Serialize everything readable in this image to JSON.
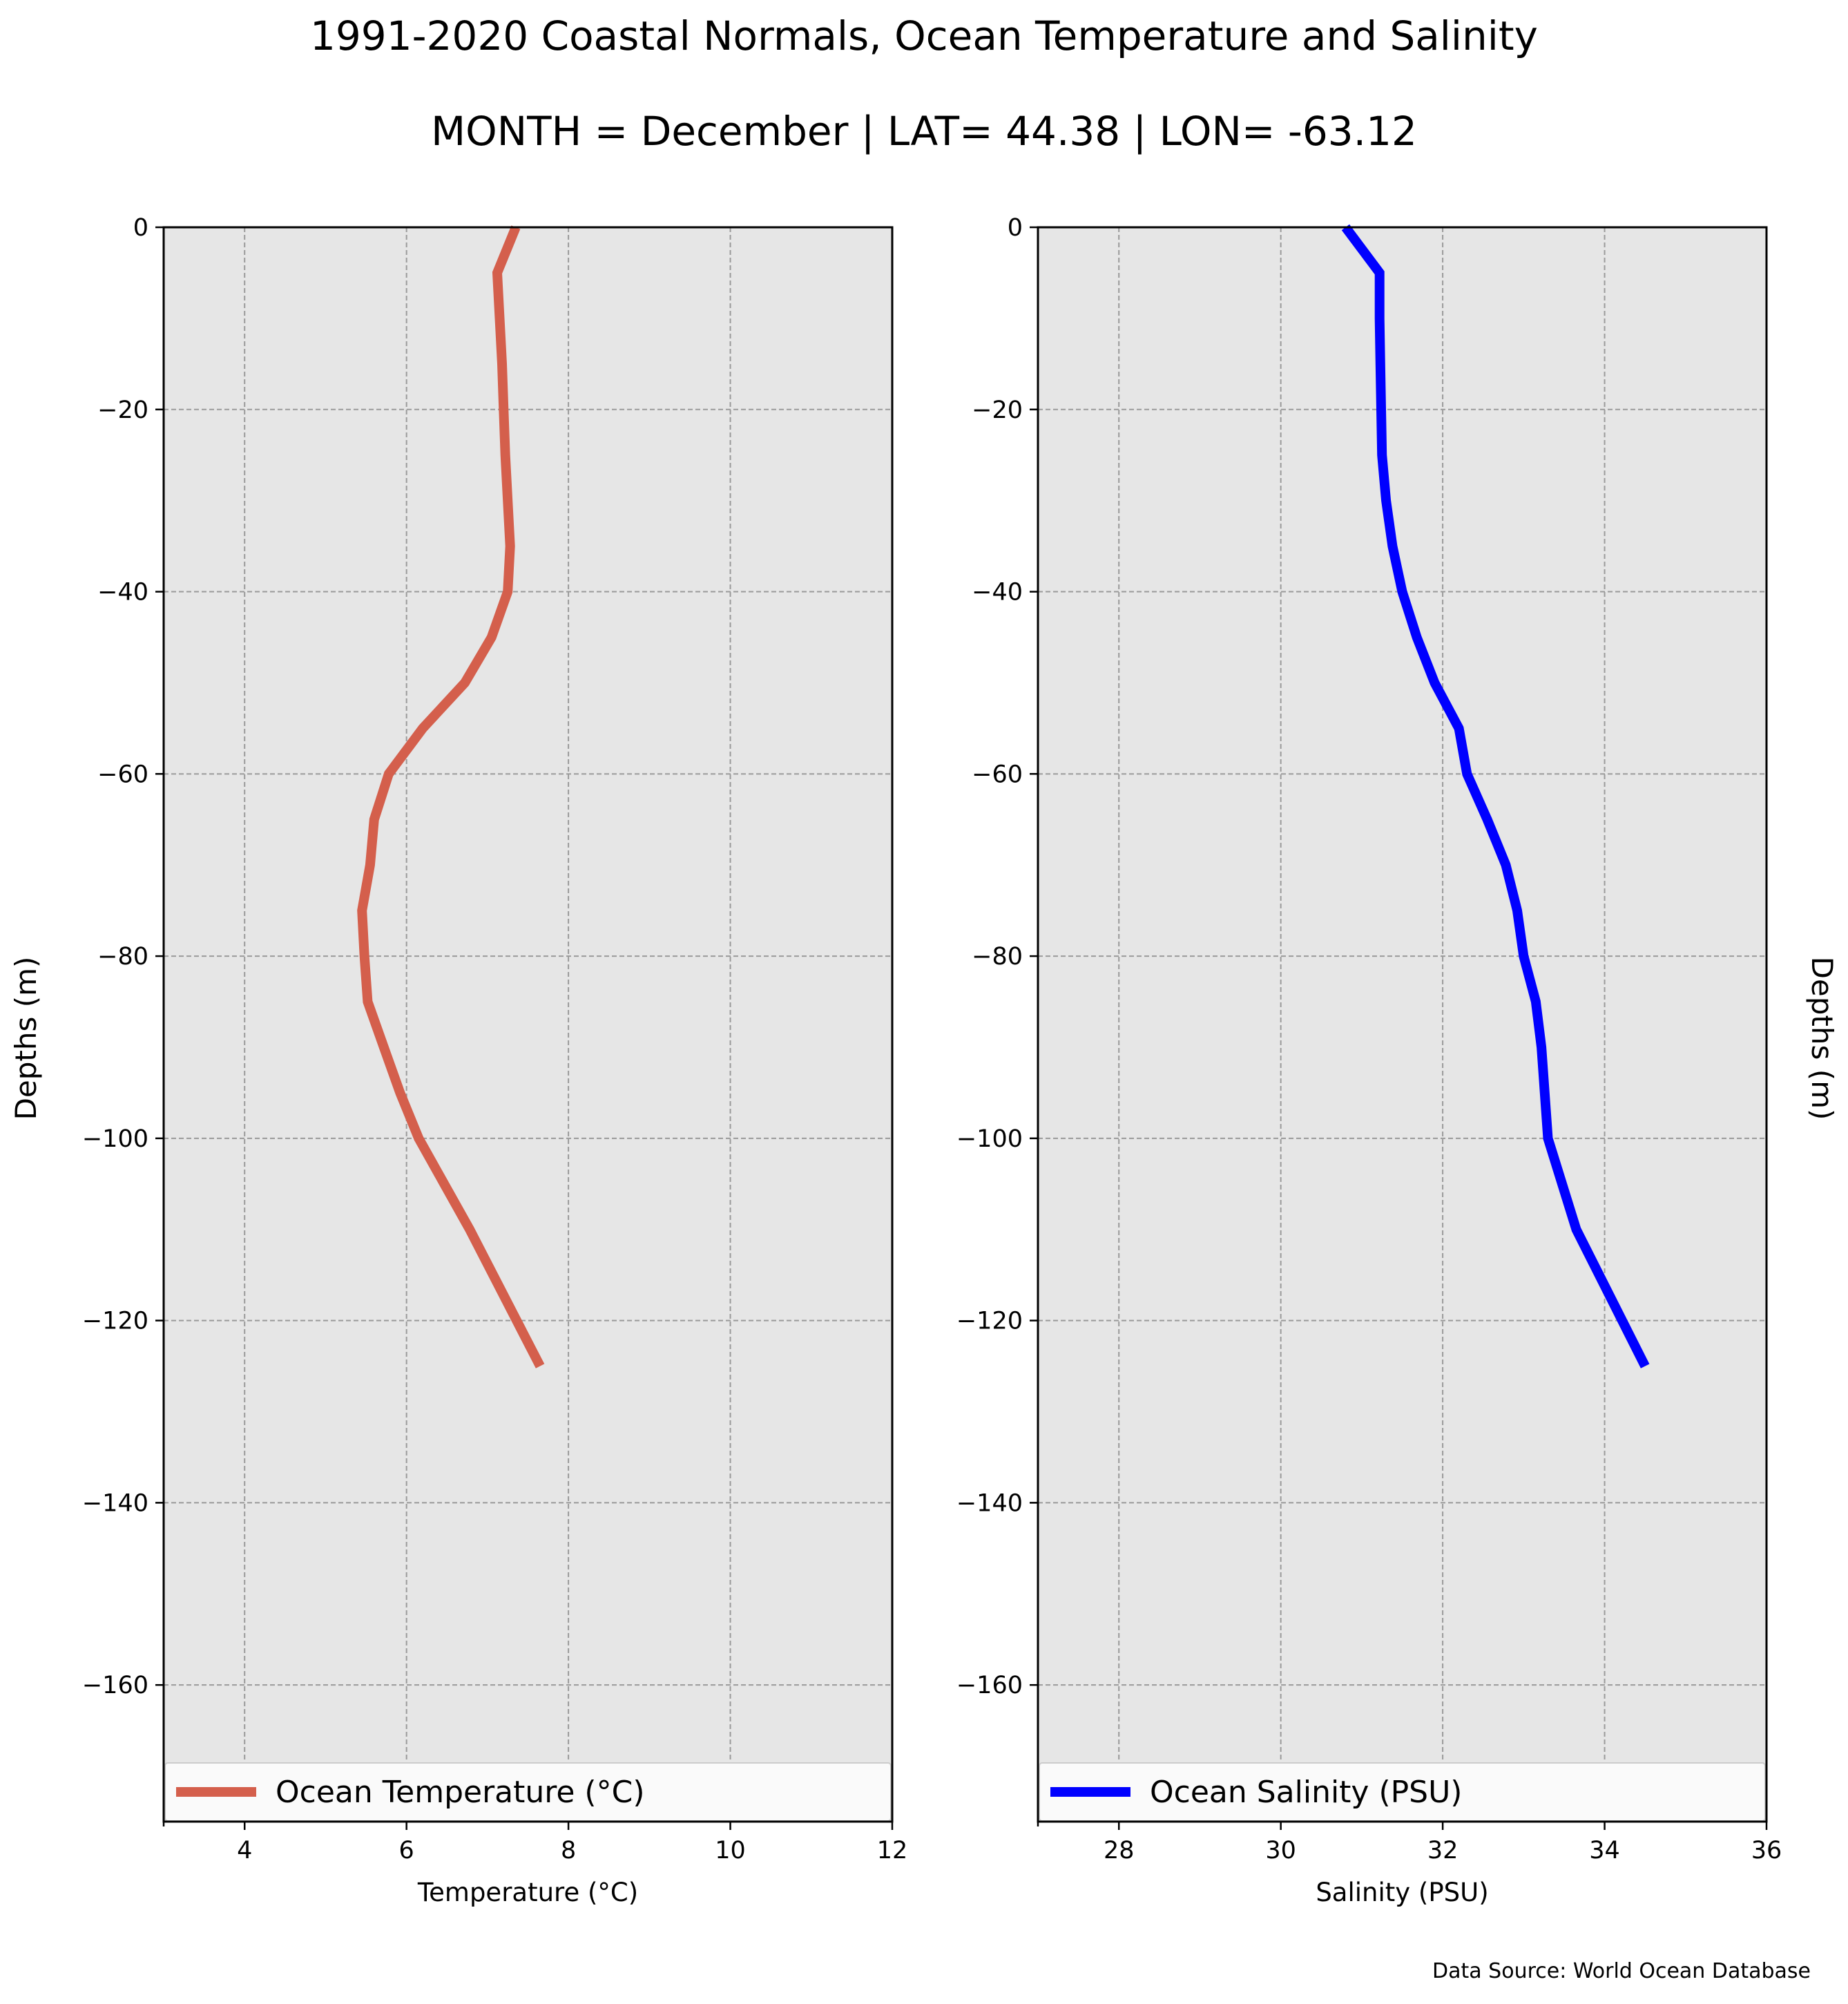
{
  "figure": {
    "title": "1991-2020 Coastal Normals, Ocean Temperature and Salinity",
    "subtitle": "MONTH = December | LAT= 44.38 | LON= -63.12",
    "source": "Data Source: World Ocean Database",
    "colors": {
      "panel_bg": "#e6e6e6",
      "grid": "#9a9a9a",
      "temperature": "#d45f4c",
      "salinity": "#0000ff"
    }
  },
  "chart_data": [
    {
      "type": "line",
      "xlabel": "Temperature ($^\\circ$C)",
      "xlabel_display": "Temperature (°C)",
      "ylabel": "Depths (m)",
      "xlim": [
        3,
        12
      ],
      "ylim": [
        -175,
        0
      ],
      "xticks": [
        4,
        6,
        8,
        10,
        12
      ],
      "yticks": [
        0,
        -20,
        -40,
        -60,
        -80,
        -100,
        -120,
        -140,
        -160
      ],
      "grid": true,
      "legend": "bottom",
      "series": [
        {
          "name": "Ocean Temperature (°C)",
          "color": "#d45f4c",
          "x": [
            7.35,
            7.12,
            7.15,
            7.18,
            7.2,
            7.22,
            7.28,
            7.25,
            7.05,
            6.72,
            6.2,
            5.78,
            5.6,
            5.55,
            5.45,
            5.48,
            5.52,
            5.72,
            5.92,
            6.15,
            6.78,
            7.65
          ],
          "y": [
            0,
            -5,
            -10,
            -15,
            -20,
            -25,
            -35,
            -40,
            -45,
            -50,
            -55,
            -60,
            -65,
            -70,
            -75,
            -80,
            -85,
            -90,
            -95,
            -100,
            -110,
            -125
          ]
        }
      ]
    },
    {
      "type": "line",
      "xlabel": "Salinity (PSU)",
      "ylabel": "Depths (m)",
      "xlim": [
        27,
        36
      ],
      "ylim": [
        -175,
        0
      ],
      "xticks": [
        28,
        30,
        32,
        34,
        36
      ],
      "yticks": [
        0,
        -20,
        -40,
        -60,
        -80,
        -100,
        -120,
        -140,
        -160
      ],
      "grid": true,
      "legend": "bottom",
      "series": [
        {
          "name": "Ocean Salinity (PSU)",
          "color": "#0000ff",
          "x": [
            30.8,
            31.22,
            31.22,
            31.23,
            31.24,
            31.25,
            31.3,
            31.38,
            31.5,
            31.68,
            31.9,
            32.2,
            32.3,
            32.55,
            32.78,
            32.92,
            33.0,
            33.15,
            33.22,
            33.3,
            33.65,
            34.5
          ],
          "y": [
            0,
            -5,
            -10,
            -15,
            -20,
            -25,
            -30,
            -35,
            -40,
            -45,
            -50,
            -55,
            -60,
            -65,
            -70,
            -75,
            -80,
            -85,
            -90,
            -100,
            -110,
            -125
          ]
        }
      ]
    }
  ]
}
